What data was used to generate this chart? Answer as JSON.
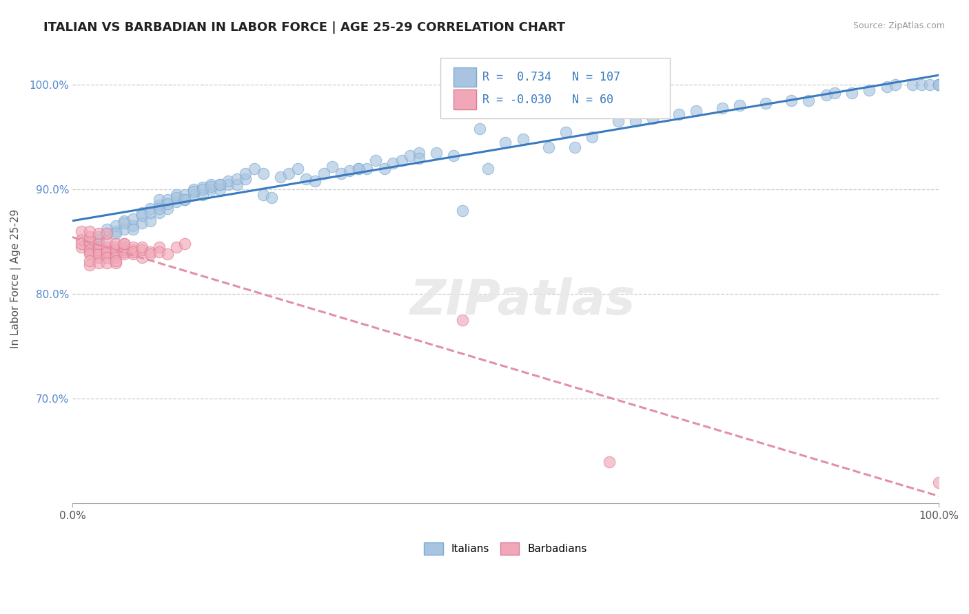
{
  "title": "ITALIAN VS BARBADIAN IN LABOR FORCE | AGE 25-29 CORRELATION CHART",
  "source_text": "Source: ZipAtlas.com",
  "ylabel": "In Labor Force | Age 25-29",
  "xlim": [
    0.0,
    1.0
  ],
  "ylim": [
    0.6,
    1.03
  ],
  "y_tick_labels": [
    "70.0%",
    "80.0%",
    "90.0%",
    "100.0%"
  ],
  "y_tick_positions": [
    0.7,
    0.8,
    0.9,
    1.0
  ],
  "italian_color": "#a8c4e0",
  "barbadian_color": "#f0a8b8",
  "italian_edge": "#7aaacf",
  "barbadian_edge": "#e07890",
  "trend_italian_color": "#3a7abf",
  "trend_barbadian_color": "#e090a8",
  "R_italian": 0.734,
  "N_italian": 107,
  "R_barbadian": -0.03,
  "N_barbadian": 60,
  "legend_italians": "Italians",
  "legend_barbadians": "Barbadians",
  "background_color": "#ffffff",
  "grid_color": "#cccccc",
  "italian_x": [
    0.02,
    0.03,
    0.04,
    0.05,
    0.05,
    0.06,
    0.06,
    0.07,
    0.07,
    0.08,
    0.08,
    0.09,
    0.09,
    0.1,
    0.1,
    0.1,
    0.11,
    0.11,
    0.12,
    0.12,
    0.13,
    0.13,
    0.14,
    0.14,
    0.15,
    0.15,
    0.16,
    0.16,
    0.17,
    0.17,
    0.18,
    0.18,
    0.19,
    0.19,
    0.2,
    0.2,
    0.21,
    0.22,
    0.22,
    0.23,
    0.24,
    0.25,
    0.26,
    0.27,
    0.28,
    0.29,
    0.3,
    0.31,
    0.32,
    0.33,
    0.34,
    0.35,
    0.36,
    0.37,
    0.38,
    0.39,
    0.4,
    0.42,
    0.44,
    0.45,
    0.47,
    0.48,
    0.5,
    0.52,
    0.55,
    0.57,
    0.58,
    0.6,
    0.63,
    0.65,
    0.67,
    0.7,
    0.72,
    0.75,
    0.77,
    0.8,
    0.83,
    0.85,
    0.87,
    0.88,
    0.9,
    0.92,
    0.94,
    0.95,
    0.97,
    0.98,
    0.99,
    1.0,
    1.0,
    1.0,
    0.03,
    0.04,
    0.05,
    0.06,
    0.07,
    0.08,
    0.09,
    0.1,
    0.11,
    0.12,
    0.13,
    0.14,
    0.15,
    0.16,
    0.17,
    0.33,
    0.4
  ],
  "italian_y": [
    0.845,
    0.852,
    0.858,
    0.86,
    0.865,
    0.862,
    0.87,
    0.865,
    0.872,
    0.868,
    0.878,
    0.87,
    0.882,
    0.878,
    0.885,
    0.89,
    0.882,
    0.89,
    0.888,
    0.895,
    0.89,
    0.895,
    0.895,
    0.9,
    0.895,
    0.902,
    0.9,
    0.905,
    0.9,
    0.905,
    0.905,
    0.908,
    0.905,
    0.91,
    0.91,
    0.915,
    0.92,
    0.895,
    0.915,
    0.892,
    0.912,
    0.915,
    0.92,
    0.91,
    0.908,
    0.915,
    0.922,
    0.915,
    0.918,
    0.92,
    0.92,
    0.928,
    0.92,
    0.925,
    0.928,
    0.932,
    0.935,
    0.935,
    0.932,
    0.88,
    0.958,
    0.92,
    0.945,
    0.948,
    0.94,
    0.955,
    0.94,
    0.95,
    0.965,
    0.965,
    0.968,
    0.972,
    0.975,
    0.978,
    0.98,
    0.982,
    0.985,
    0.985,
    0.99,
    0.992,
    0.992,
    0.995,
    0.998,
    1.0,
    1.0,
    1.0,
    1.0,
    1.0,
    1.0,
    1.0,
    0.855,
    0.862,
    0.858,
    0.868,
    0.862,
    0.875,
    0.878,
    0.882,
    0.886,
    0.892,
    0.89,
    0.898,
    0.9,
    0.903,
    0.905,
    0.92,
    0.93
  ],
  "barbadian_x": [
    0.01,
    0.01,
    0.01,
    0.02,
    0.02,
    0.02,
    0.02,
    0.02,
    0.02,
    0.02,
    0.03,
    0.03,
    0.03,
    0.03,
    0.03,
    0.03,
    0.04,
    0.04,
    0.04,
    0.04,
    0.04,
    0.04,
    0.05,
    0.05,
    0.05,
    0.05,
    0.05,
    0.05,
    0.06,
    0.06,
    0.06,
    0.06,
    0.06,
    0.07,
    0.07,
    0.07,
    0.07,
    0.08,
    0.08,
    0.08,
    0.09,
    0.09,
    0.1,
    0.1,
    0.11,
    0.12,
    0.13,
    0.45,
    0.62,
    1.0,
    0.01,
    0.02,
    0.02,
    0.03,
    0.03,
    0.04,
    0.04,
    0.05,
    0.05,
    0.06
  ],
  "barbadian_y": [
    0.845,
    0.852,
    0.848,
    0.84,
    0.848,
    0.85,
    0.842,
    0.838,
    0.855,
    0.828,
    0.835,
    0.84,
    0.845,
    0.842,
    0.838,
    0.848,
    0.838,
    0.842,
    0.845,
    0.84,
    0.835,
    0.85,
    0.84,
    0.845,
    0.838,
    0.842,
    0.835,
    0.848,
    0.838,
    0.842,
    0.845,
    0.84,
    0.848,
    0.842,
    0.838,
    0.845,
    0.84,
    0.835,
    0.842,
    0.845,
    0.84,
    0.838,
    0.845,
    0.84,
    0.838,
    0.845,
    0.848,
    0.775,
    0.64,
    0.62,
    0.86,
    0.86,
    0.832,
    0.858,
    0.83,
    0.858,
    0.83,
    0.83,
    0.832,
    0.848
  ]
}
